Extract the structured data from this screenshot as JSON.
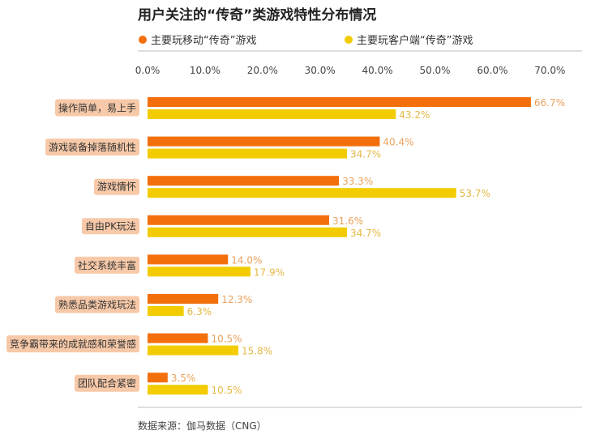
{
  "chart_data": {
    "type": "bar",
    "orientation": "horizontal",
    "title": "用户关注的“传奇”类游戏特性分布情况",
    "categories": [
      "操作简单，易上手",
      "游戏装备掉落随机性",
      "游戏情怀",
      "自由PK玩法",
      "社交系统丰富",
      "熟悉品类游戏玩法",
      "竞争霸带来的成就感和荣誉感",
      "团队配合紧密"
    ],
    "series": [
      {
        "name": "主要玩移动“传奇”游戏",
        "color": "#F36F0C",
        "label_color": "#E8A25C",
        "values": [
          66.7,
          40.4,
          33.3,
          31.6,
          14.0,
          12.3,
          10.5,
          3.5
        ],
        "labels": [
          "66.7%",
          "40.4%",
          "33.3%",
          "31.6%",
          "14.0%",
          "12.3%",
          "10.5%",
          "3.5%"
        ]
      },
      {
        "name": "主要玩客户端“传奇”游戏",
        "color": "#F2CC00",
        "label_color": "#E4B845",
        "values": [
          43.2,
          34.7,
          53.7,
          34.7,
          17.9,
          6.3,
          15.8,
          10.5
        ],
        "labels": [
          "43.2%",
          "34.7%",
          "53.7%",
          "34.7%",
          "17.9%",
          "6.3%",
          "15.8%",
          "10.5%"
        ]
      }
    ],
    "xlim": [
      0,
      75
    ],
    "ticks": [
      0,
      10,
      20,
      30,
      40,
      50,
      60,
      70
    ],
    "tick_labels": [
      "0.0%",
      "10.0%",
      "20.0%",
      "30.0%",
      "40.0%",
      "50.0%",
      "60.0%",
      "70.0%"
    ],
    "category_label_bg": "#F7C9A8",
    "legend_position": "top",
    "grid": false,
    "source": "数据来源：伽马数据（CNG）"
  }
}
